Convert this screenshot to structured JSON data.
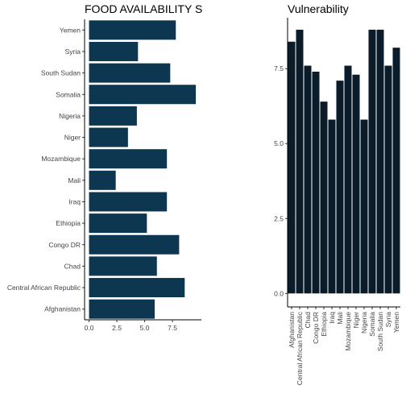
{
  "chart_data": [
    {
      "type": "bar",
      "orientation": "horizontal",
      "title": "FOOD AVAILABILITY SC",
      "xlabel": "",
      "ylabel": "",
      "categories": [
        "Yemen",
        "Syria",
        "South Sudan",
        "Somalia",
        "Nigeria",
        "Niger",
        "Mozambique",
        "Mali",
        "Iraq",
        "Ethiopia",
        "Congo DR",
        "Chad",
        "Central African Republic",
        "Afghanistan"
      ],
      "values": [
        7.8,
        4.4,
        7.3,
        9.6,
        4.3,
        3.5,
        7.0,
        2.4,
        7.0,
        5.2,
        8.1,
        6.1,
        8.6,
        5.9
      ],
      "xticks": [
        "0.0",
        "2.5",
        "5.0",
        "7.5"
      ],
      "xlim": [
        -0.4,
        10.1
      ],
      "grid": false,
      "color": "#0d3651"
    },
    {
      "type": "bar",
      "orientation": "vertical",
      "title": "Vulnerability",
      "xlabel": "",
      "ylabel": "",
      "categories": [
        "Afghanistan",
        "Central African Republic",
        "Chad",
        "Congo DR",
        "Ethiopia",
        "Iraq",
        "Mali",
        "Mozambique",
        "Niger",
        "Nigeria",
        "Somalia",
        "South Sudan",
        "Syria",
        "Yemen"
      ],
      "values": [
        8.4,
        8.8,
        7.6,
        7.4,
        6.4,
        5.8,
        7.1,
        7.6,
        7.3,
        5.8,
        8.8,
        8.8,
        7.6,
        8.2
      ],
      "yticks": [
        "0.0",
        "2.5",
        "5.0",
        "7.5"
      ],
      "ylim": [
        -0.45,
        9.2
      ],
      "grid": false,
      "color": "#0a1b29"
    }
  ]
}
